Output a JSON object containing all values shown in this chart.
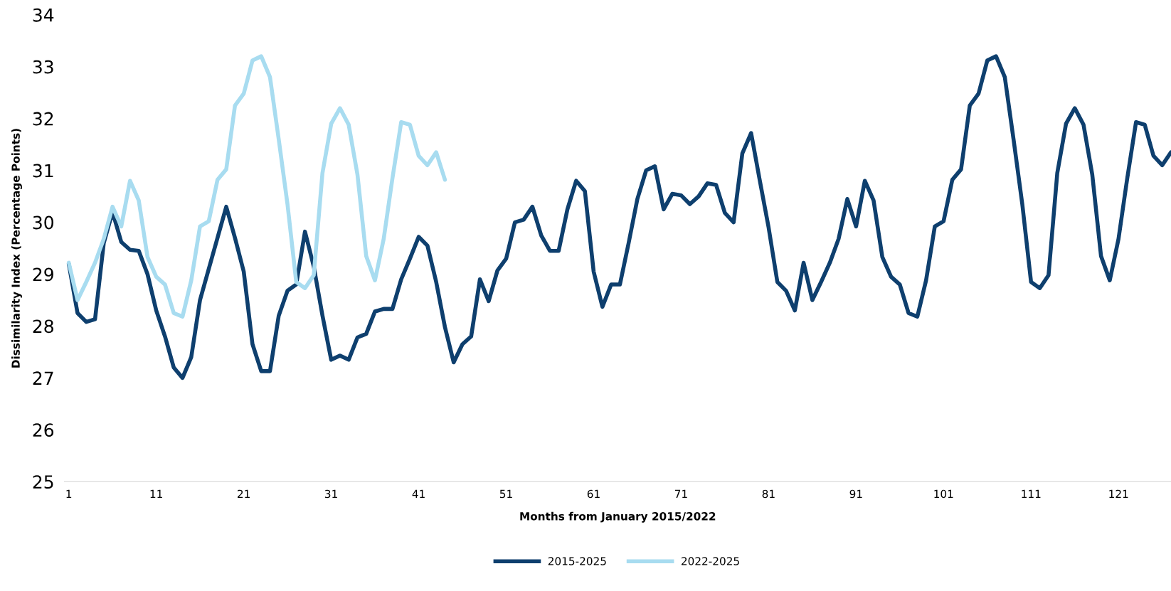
{
  "chart_data": {
    "type": "line",
    "xlabel": "Months from January 2015/2022",
    "ylabel": "Dissimilarity Index (Percentage Points)",
    "xlim": [
      0.5,
      127
    ],
    "xticks": [
      1,
      11,
      21,
      31,
      41,
      51,
      61,
      71,
      81,
      91,
      101,
      111,
      121
    ],
    "ylim": [
      25,
      34
    ],
    "yticks": [
      25,
      26,
      27,
      28,
      29,
      30,
      31,
      32,
      33,
      34
    ],
    "grid": false,
    "legend": "bottom",
    "marker": "none",
    "line_style": "solid",
    "series": [
      {
        "name": "2015-2025",
        "color": "#0e3f6e",
        "x": [
          1,
          2,
          3,
          4,
          5,
          6,
          7,
          8,
          9,
          10,
          11,
          12,
          13,
          14,
          15,
          16,
          17,
          18,
          19,
          20,
          21,
          22,
          23,
          24,
          25,
          26,
          27,
          28,
          29,
          30,
          31,
          32,
          33,
          34,
          35,
          36,
          37,
          38,
          39,
          40,
          41,
          42,
          43,
          44,
          45,
          46,
          47,
          48,
          49,
          50,
          51,
          52,
          53,
          54,
          55,
          56,
          57,
          58,
          59,
          60,
          61,
          62,
          63,
          64,
          65,
          66,
          67,
          68,
          69,
          70,
          71,
          72,
          73,
          74,
          75,
          76,
          77,
          78,
          79,
          80,
          81,
          82,
          83,
          84,
          85,
          86,
          87,
          88,
          89,
          90,
          91,
          92,
          93,
          94,
          95,
          96,
          97,
          98,
          99,
          100,
          101,
          102,
          103,
          104,
          105,
          106,
          107,
          108,
          109,
          110,
          111,
          112,
          113,
          114,
          115,
          116,
          117,
          118,
          119,
          120,
          121,
          122,
          123,
          124,
          125,
          126,
          127
        ],
        "values": [
          29.2,
          28.25,
          28.08,
          28.13,
          29.6,
          30.2,
          29.62,
          29.47,
          29.45,
          29.0,
          28.3,
          27.8,
          27.2,
          27.0,
          27.4,
          28.5,
          29.1,
          29.7,
          30.3,
          29.7,
          29.05,
          27.65,
          27.13,
          27.13,
          28.2,
          28.68,
          28.8,
          29.82,
          29.15,
          28.2,
          27.35,
          27.43,
          27.35,
          27.78,
          27.85,
          28.28,
          28.33,
          28.33,
          28.9,
          29.3,
          29.72,
          29.55,
          28.85,
          27.98,
          27.3,
          27.65,
          27.8,
          28.9,
          28.48,
          29.07,
          29.3,
          30.0,
          30.05,
          30.3,
          29.75,
          29.45,
          29.45,
          30.25,
          30.8,
          30.6,
          29.05,
          28.37,
          28.8,
          28.8,
          29.6,
          30.45,
          31.0,
          31.08,
          30.25,
          30.55,
          30.52,
          30.35,
          30.5,
          30.75,
          30.72,
          30.18,
          30.0,
          31.33,
          31.72,
          30.8,
          29.9,
          28.85,
          28.68,
          28.3,
          29.22,
          28.5,
          28.85,
          29.22,
          29.68,
          30.45,
          29.92,
          30.8,
          30.42,
          29.33,
          28.95,
          28.8,
          28.25,
          28.18,
          28.88,
          29.92,
          30.02,
          30.82,
          31.02,
          32.25,
          32.48,
          33.12,
          33.2,
          32.8,
          31.6,
          30.35,
          28.85,
          28.73,
          28.98,
          30.95,
          31.9,
          32.2,
          31.88,
          30.92,
          29.35,
          28.88,
          29.68,
          30.85,
          31.93,
          31.88,
          31.28,
          31.1,
          31.35
        ]
      },
      {
        "name": "2022-2025",
        "color": "#a8dcf0",
        "x": [
          1,
          2,
          3,
          4,
          5,
          6,
          7,
          8,
          9,
          10,
          11,
          12,
          13,
          14,
          15,
          16,
          17,
          18,
          19,
          20,
          21,
          22,
          23,
          24,
          25,
          26,
          27,
          28,
          29,
          30,
          31,
          32,
          33,
          34,
          35,
          36,
          37,
          38,
          39,
          40,
          41,
          42,
          43,
          44
        ],
        "values": [
          29.22,
          28.5,
          28.85,
          29.22,
          29.68,
          30.3,
          29.92,
          30.8,
          30.42,
          29.33,
          28.95,
          28.8,
          28.25,
          28.18,
          28.88,
          29.92,
          30.02,
          30.82,
          31.02,
          32.25,
          32.48,
          33.12,
          33.2,
          32.8,
          31.6,
          30.35,
          28.85,
          28.73,
          28.98,
          30.95,
          31.9,
          32.2,
          31.88,
          30.92,
          29.35,
          28.88,
          29.68,
          30.85,
          31.93,
          31.88,
          31.28,
          31.1,
          31.35,
          30.82
        ]
      }
    ]
  }
}
